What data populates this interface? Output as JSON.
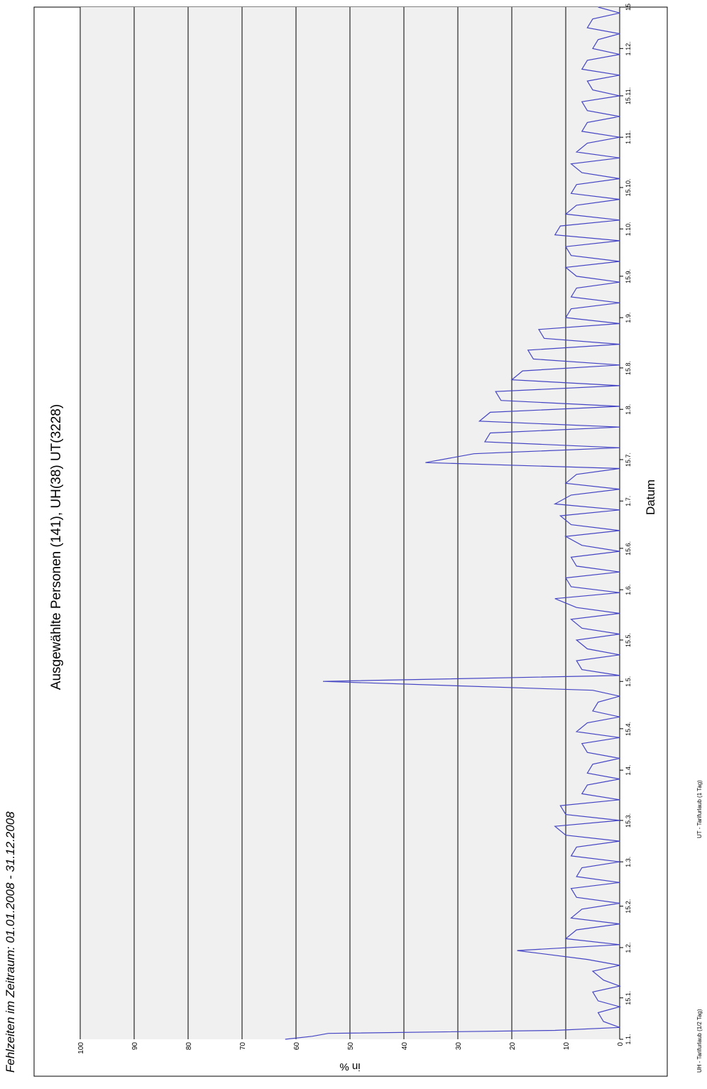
{
  "chart_data": {
    "type": "line",
    "page_title": "Fehlzeiten im Zeitraum: 01.01.2008 - 31.12.2008",
    "title": "Ausgewählte Personen (141), UH(38) UT(3228)",
    "xlabel": "Datum",
    "ylabel": "in %",
    "footnotes": [
      "UH - Tarifurlaub (1/2 Tag)",
      "UT - Tarifurlaub (1 Tag)"
    ],
    "x": [
      1,
      2,
      3,
      4,
      5,
      7,
      10,
      12,
      14,
      17,
      19,
      21,
      24,
      26,
      28,
      31,
      33,
      35,
      38,
      40,
      42,
      45,
      47,
      49,
      52,
      54,
      56,
      59,
      61,
      63,
      66,
      68,
      70,
      73,
      75,
      77,
      80,
      82,
      84,
      87,
      89,
      91,
      94,
      96,
      98,
      101,
      103,
      105,
      108,
      110,
      112,
      115,
      117,
      119,
      122,
      124,
      126,
      129,
      131,
      133,
      136,
      138,
      140,
      143,
      145,
      147,
      150,
      152,
      154,
      157,
      159,
      161,
      164,
      166,
      168,
      171,
      173,
      175,
      178,
      180,
      182,
      185,
      187,
      189,
      192,
      194,
      196,
      199,
      201,
      203,
      206,
      208,
      210,
      213,
      215,
      217,
      220,
      222,
      224,
      227,
      229,
      231,
      234,
      236,
      238,
      241,
      243,
      245,
      248,
      250,
      252,
      255,
      257,
      259,
      262,
      264,
      266,
      269,
      271,
      273,
      276,
      278,
      280,
      283,
      285,
      287,
      290,
      292,
      294,
      297,
      299,
      301,
      304,
      306,
      308,
      311,
      313,
      315,
      318,
      320,
      322,
      325,
      327,
      329,
      332,
      334,
      336,
      339,
      341,
      343,
      346,
      348,
      350
    ],
    "series": [
      {
        "color": "#4545c4",
        "values": [
          62,
          57,
          54,
          12,
          0,
          3,
          4,
          0,
          4,
          5,
          0,
          3,
          5,
          0,
          6,
          19,
          0,
          10,
          8,
          0,
          9,
          7,
          0,
          8,
          9,
          0,
          8,
          7,
          0,
          9,
          8,
          0,
          10,
          12,
          0,
          10,
          11,
          0,
          7,
          6,
          0,
          6,
          5,
          0,
          6,
          7,
          0,
          8,
          6,
          0,
          5,
          4,
          0,
          5,
          55,
          0,
          7,
          8,
          0,
          6,
          8,
          0,
          7,
          9,
          0,
          8,
          12,
          0,
          9,
          10,
          0,
          8,
          9,
          0,
          7,
          10,
          0,
          9,
          11,
          0,
          12,
          9,
          0,
          10,
          8,
          0,
          36,
          27,
          0,
          25,
          24,
          0,
          26,
          24,
          0,
          22,
          23,
          0,
          20,
          18,
          0,
          16,
          17,
          0,
          14,
          15,
          0,
          10,
          9,
          0,
          9,
          8,
          0,
          8,
          10,
          0,
          9,
          10,
          0,
          12,
          11,
          0,
          10,
          8,
          0,
          9,
          8,
          0,
          7,
          9,
          0,
          8,
          6,
          0,
          7,
          6,
          0,
          6,
          7,
          0,
          5,
          6,
          0,
          7,
          6,
          0,
          5,
          4,
          0,
          6,
          5,
          0,
          4
        ]
      }
    ],
    "xlim": [
      1,
      350
    ],
    "xticks": [
      {
        "value": 1,
        "label": "1.1."
      },
      {
        "value": 15,
        "label": "15.1."
      },
      {
        "value": 32,
        "label": "1.2."
      },
      {
        "value": 46,
        "label": "15.2."
      },
      {
        "value": 61,
        "label": "1.3."
      },
      {
        "value": 75,
        "label": "15.3."
      },
      {
        "value": 92,
        "label": "1.4."
      },
      {
        "value": 106,
        "label": "15.4."
      },
      {
        "value": 122,
        "label": "1.5."
      },
      {
        "value": 136,
        "label": "15.5."
      },
      {
        "value": 153,
        "label": "1.6."
      },
      {
        "value": 167,
        "label": "15.6."
      },
      {
        "value": 183,
        "label": "1.7."
      },
      {
        "value": 197,
        "label": "15.7."
      },
      {
        "value": 214,
        "label": "1.8."
      },
      {
        "value": 228,
        "label": "15.8."
      },
      {
        "value": 245,
        "label": "1.9."
      },
      {
        "value": 259,
        "label": "15.9."
      },
      {
        "value": 275,
        "label": "1.10."
      },
      {
        "value": 289,
        "label": "15.10."
      },
      {
        "value": 306,
        "label": "1.11."
      },
      {
        "value": 320,
        "label": "15.11."
      },
      {
        "value": 336,
        "label": "1.12."
      },
      {
        "value": 350,
        "label": "15"
      }
    ],
    "ylim": [
      0,
      100
    ],
    "yticks": [
      0,
      10,
      20,
      30,
      40,
      50,
      60,
      70,
      80,
      90,
      100
    ],
    "grid": true,
    "background": "#f0f0f0"
  }
}
